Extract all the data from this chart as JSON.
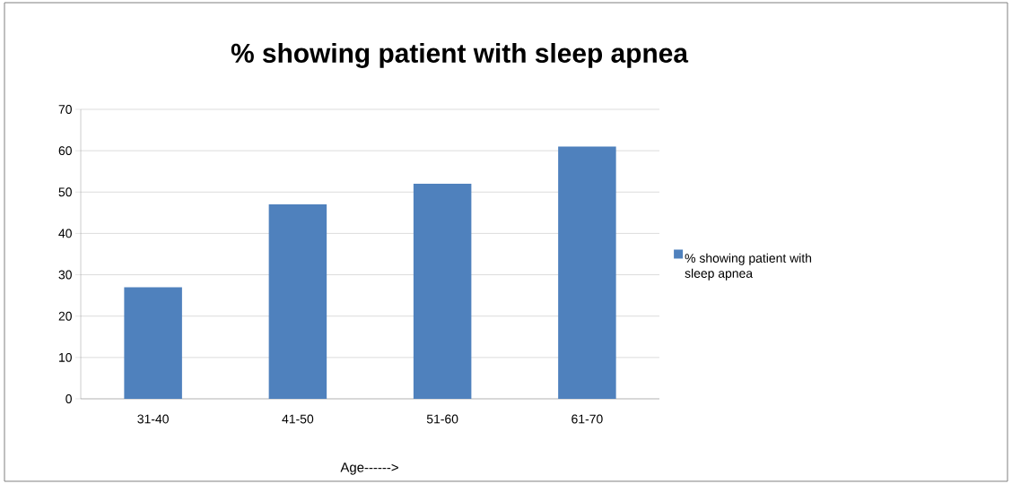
{
  "chart_data": {
    "type": "bar",
    "title": "% showing patient with sleep apnea",
    "xlabel": "Age------>",
    "categories": [
      "31-40",
      "41-50",
      "51-60",
      "61-70"
    ],
    "series": [
      {
        "name": "% showing patient with sleep apnea",
        "color": "#4f81bd",
        "values": [
          27,
          47,
          52,
          61
        ]
      }
    ],
    "ylim": [
      0,
      70
    ],
    "yticks": [
      0,
      10,
      20,
      30,
      40,
      50,
      60,
      70
    ],
    "grid": "y",
    "legend": "right"
  }
}
